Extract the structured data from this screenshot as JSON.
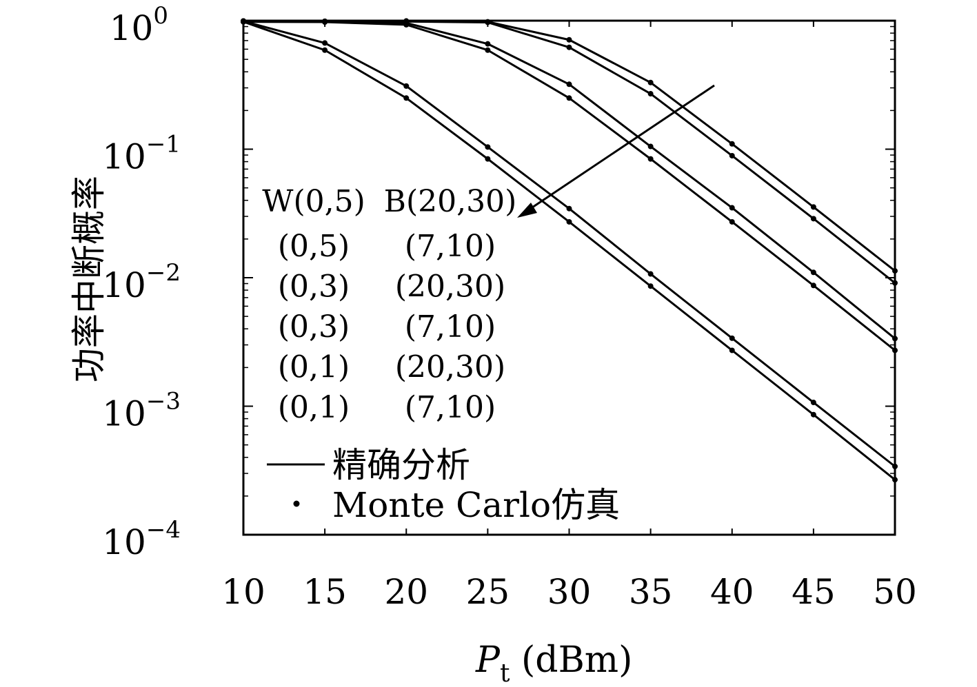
{
  "chart_data": {
    "type": "line",
    "xlabel": "P",
    "xlabel_sub": "t",
    "xlabel_unit": " (dBm)",
    "ylabel": "功率中断概率",
    "yscale": "log",
    "xlim": [
      10,
      50
    ],
    "ylim": [
      0.0001,
      1
    ],
    "x": [
      10,
      15,
      20,
      25,
      30,
      35,
      40,
      45,
      50
    ],
    "x_ticks": [
      "10",
      "15",
      "20",
      "25",
      "30",
      "35",
      "40",
      "45",
      "50"
    ],
    "y_ticks": [
      {
        "base": "10",
        "exp": "0"
      },
      {
        "base": "10",
        "exp": "−1"
      },
      {
        "base": "10",
        "exp": "−2"
      },
      {
        "base": "10",
        "exp": "−3"
      },
      {
        "base": "10",
        "exp": "−4"
      }
    ],
    "series": [
      {
        "W": "(0,5)",
        "B": "(7,10)",
        "values": [
          0.995,
          0.99,
          0.96,
          0.66,
          0.32,
          0.105,
          0.035,
          0.011,
          0.00336
        ]
      },
      {
        "W": "(0,5)",
        "B": "(20,30)",
        "values": [
          0.994,
          0.99,
          0.995,
          0.98,
          0.71,
          0.33,
          0.11,
          0.0355,
          0.0113
        ]
      },
      {
        "W": "(0,3)",
        "B": "(7,10)",
        "values": [
          0.98,
          0.975,
          0.93,
          0.59,
          0.25,
          0.084,
          0.0272,
          0.0087,
          0.00272
        ]
      },
      {
        "W": "(0,3)",
        "B": "(20,30)",
        "values": [
          0.985,
          0.985,
          0.985,
          0.97,
          0.62,
          0.27,
          0.089,
          0.0288,
          0.0091
        ]
      },
      {
        "W": "(0,1)",
        "B": "(7,10)",
        "values": [
          0.98,
          0.59,
          0.25,
          0.084,
          0.0272,
          0.0086,
          0.00272,
          0.00086,
          0.000268
        ]
      },
      {
        "W": "(0,1)",
        "B": "(20,30)",
        "values": [
          0.99,
          0.67,
          0.31,
          0.104,
          0.0345,
          0.0107,
          0.00338,
          0.00107,
          0.00034
        ]
      }
    ],
    "annotation": {
      "header_w": "W(0,5)",
      "header_b": "B(20,30)",
      "rows": [
        {
          "w": "(0,5)",
          "b": "(7,10)"
        },
        {
          "w": "(0,3)",
          "b": "(20,30)"
        },
        {
          "w": "(0,3)",
          "b": "(7,10)"
        },
        {
          "w": "(0,1)",
          "b": "(20,30)"
        },
        {
          "w": "(0,1)",
          "b": "(7,10)"
        }
      ]
    },
    "legend": [
      {
        "marker": "line",
        "label": "精确分析"
      },
      {
        "marker": "dot",
        "label": "Monte Carlo仿真"
      }
    ],
    "color": "#000000"
  }
}
